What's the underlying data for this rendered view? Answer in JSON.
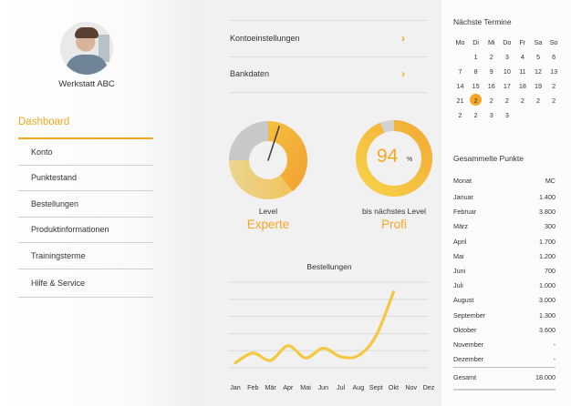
{
  "sidebar": {
    "user_name": "Werkstatt ABC",
    "active": "Dashboard",
    "items": [
      {
        "label": "Konto"
      },
      {
        "label": "Punktestand"
      },
      {
        "label": "Bestellungen"
      },
      {
        "label": "Produktinformationen"
      },
      {
        "label": "Trainingsterme"
      },
      {
        "label": "Hilfe & Service"
      }
    ]
  },
  "settings": [
    {
      "label": "Kontoeinstellungen",
      "icon": "chevron-right-icon"
    },
    {
      "label": "Bankdaten",
      "icon": "chevron-right-icon"
    }
  ],
  "level_gauge": {
    "caption": "Level",
    "value": "Experte",
    "needle_fraction": 0.05
  },
  "progress_gauge": {
    "percent": "94",
    "percent_fraction": 0.94,
    "percent_sign": "%",
    "caption": "bis nächstes Level",
    "value": "Profi"
  },
  "chart_data": {
    "type": "line",
    "title": "Bestellungen",
    "categories": [
      "Jan",
      "Feb",
      "Mär",
      "Apr",
      "Mai",
      "Jun",
      "Jul",
      "Aug",
      "Sept",
      "Okt",
      "Nov",
      "Dez"
    ],
    "values": [
      0.4,
      1.2,
      0.6,
      1.8,
      0.8,
      1.6,
      0.9,
      1.0,
      2.6,
      6.2,
      null,
      null
    ],
    "ylim": [
      0,
      7
    ],
    "grid": true,
    "color": "#f5c842"
  },
  "calendar": {
    "title": "Nächste Termine",
    "weekdays": [
      "Mo",
      "Di",
      "Mi",
      "Do",
      "Fr",
      "Sa",
      "So"
    ],
    "weeks": [
      [
        "",
        "1",
        "2",
        "3",
        "4",
        "5",
        "6"
      ],
      [
        "7",
        "8",
        "9",
        "10",
        "11",
        "12",
        "13"
      ],
      [
        "14",
        "15",
        "16",
        "17",
        "18",
        "19",
        "2"
      ],
      [
        "21",
        "2",
        "2",
        "2",
        "2",
        "2",
        "2"
      ],
      [
        "2",
        "2",
        "3",
        "3",
        "",
        "",
        ""
      ]
    ],
    "selected": "2",
    "accent": "#f5a623"
  },
  "points": {
    "title": "Gesammelte Punkte",
    "col_month": "Monat",
    "col_value": "MC",
    "rows": [
      {
        "month": "Januar",
        "value": "1.400"
      },
      {
        "month": "Februar",
        "value": "3.800"
      },
      {
        "month": "März",
        "value": "300"
      },
      {
        "month": "April",
        "value": "1.700"
      },
      {
        "month": "Mai",
        "value": "1.200"
      },
      {
        "month": "Juni",
        "value": "700"
      },
      {
        "month": "Juli",
        "value": "1.000"
      },
      {
        "month": "August",
        "value": "3.000"
      },
      {
        "month": "September",
        "value": "1.300"
      },
      {
        "month": "Oktober",
        "value": "3.600"
      },
      {
        "month": "November",
        "value": "-"
      },
      {
        "month": "Dezember",
        "value": "-"
      }
    ],
    "total_label": "Gesamt",
    "total_value": "18.000"
  }
}
